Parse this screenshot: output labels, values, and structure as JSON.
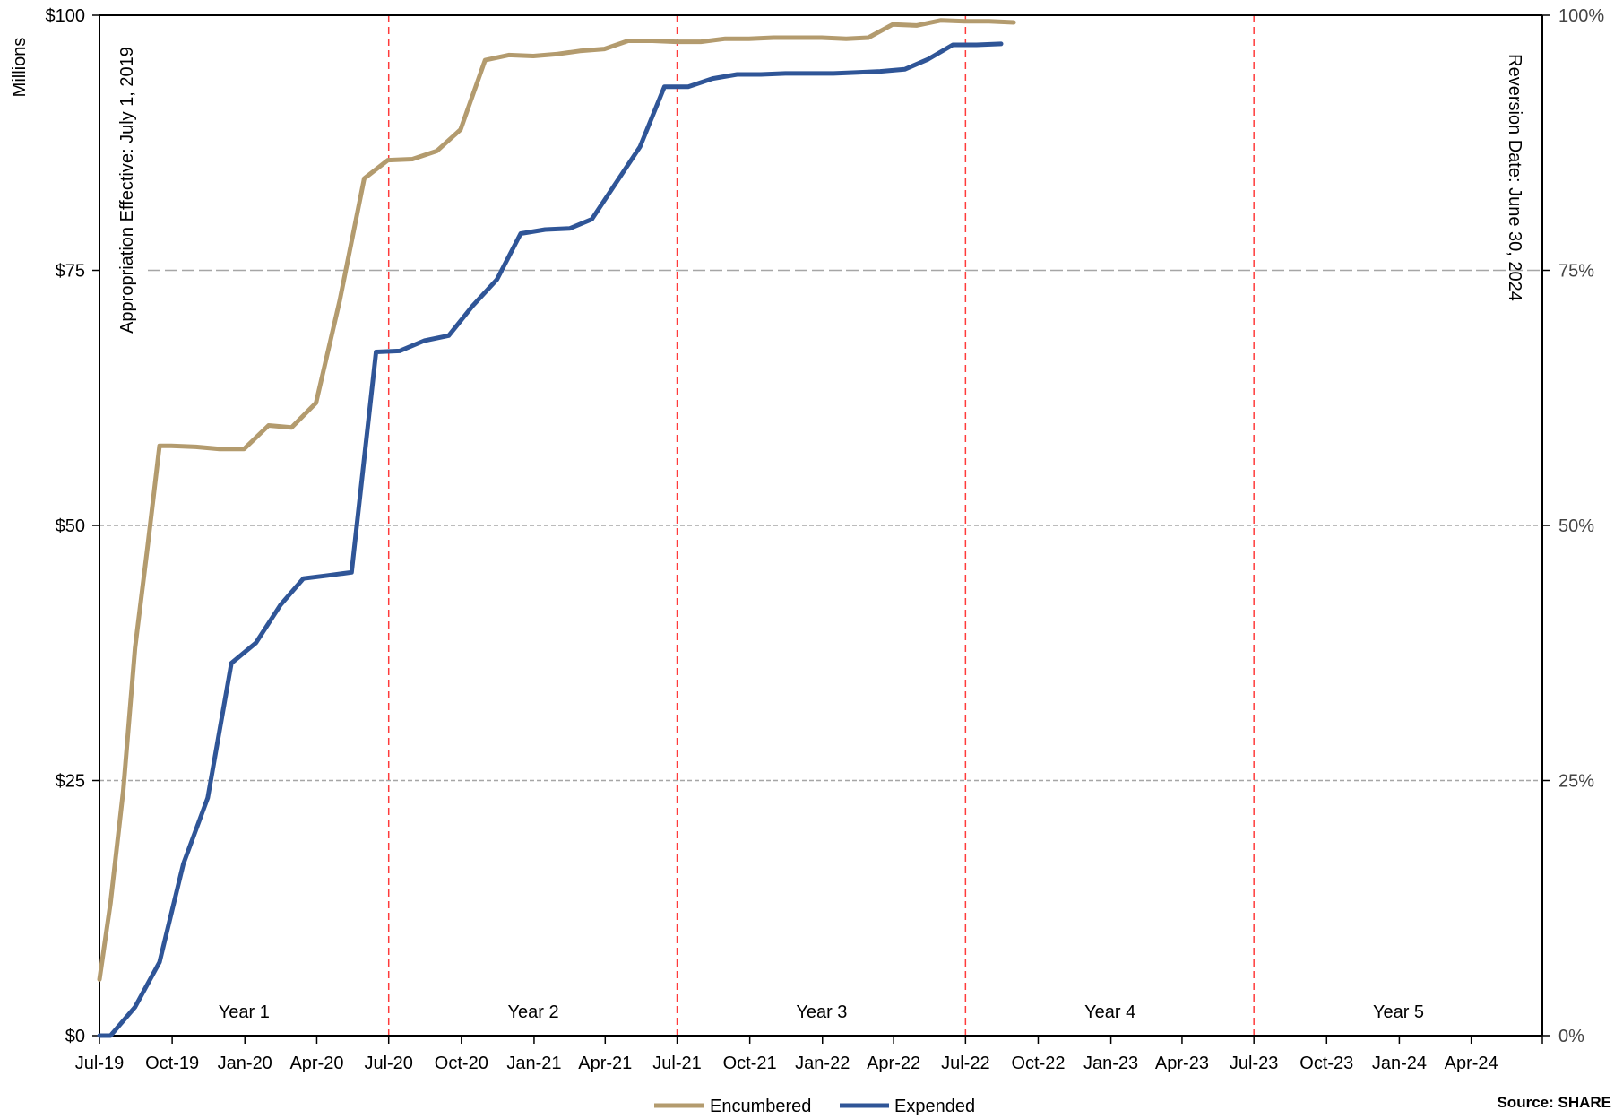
{
  "chart_data": {
    "type": "line",
    "ylabel": "Millions",
    "y_ticks": [
      "$0",
      "$25",
      "$50",
      "$75",
      "$100"
    ],
    "y_right_ticks": [
      "0%",
      "25%",
      "50%",
      "75%",
      "100%"
    ],
    "ylim": [
      0,
      100
    ],
    "x_range": [
      "2019-07-01",
      "2024-06-30"
    ],
    "x_ticks": [
      {
        "label": "Jul-19",
        "date": "2019-07-01"
      },
      {
        "label": "Oct-19",
        "date": "2019-10-01"
      },
      {
        "label": "Jan-20",
        "date": "2020-01-01"
      },
      {
        "label": "Apr-20",
        "date": "2020-04-01"
      },
      {
        "label": "Jul-20",
        "date": "2020-07-01"
      },
      {
        "label": "Oct-20",
        "date": "2020-10-01"
      },
      {
        "label": "Jan-21",
        "date": "2021-01-01"
      },
      {
        "label": "Apr-21",
        "date": "2021-04-01"
      },
      {
        "label": "Jul-21",
        "date": "2021-07-01"
      },
      {
        "label": "Oct-21",
        "date": "2021-10-01"
      },
      {
        "label": "Jan-22",
        "date": "2022-01-01"
      },
      {
        "label": "Apr-22",
        "date": "2022-04-01"
      },
      {
        "label": "Jul-22",
        "date": "2022-07-01"
      },
      {
        "label": "Oct-22",
        "date": "2022-10-01"
      },
      {
        "label": "Jan-23",
        "date": "2023-01-01"
      },
      {
        "label": "Apr-23",
        "date": "2023-04-01"
      },
      {
        "label": "Jul-23",
        "date": "2023-07-01"
      },
      {
        "label": "Oct-23",
        "date": "2023-10-01"
      },
      {
        "label": "Jan-24",
        "date": "2024-01-01"
      },
      {
        "label": "Apr-24",
        "date": "2024-04-01"
      }
    ],
    "year_boundaries": [
      "2020-07-01",
      "2021-07-01",
      "2022-07-01",
      "2023-07-01"
    ],
    "periods": [
      {
        "label": "Year 1",
        "date": "2019-12-31"
      },
      {
        "label": "Year 2",
        "date": "2020-12-31"
      },
      {
        "label": "Year 3",
        "date": "2021-12-31"
      },
      {
        "label": "Year 4",
        "date": "2022-12-31"
      },
      {
        "label": "Year 5",
        "date": "2023-12-31"
      }
    ],
    "annotations": {
      "left": "Appropriation Effective: July 1, 2019",
      "right": "Reversion Date: June 30, 2024"
    },
    "grid": "horizontal dashed",
    "legend_position": "bottom-center",
    "source": "Source: SHARE",
    "series": [
      {
        "name": "Encumbered",
        "color": "#B39B6E",
        "points": [
          [
            "2019-07-01",
            5.5
          ],
          [
            "2019-07-15",
            13
          ],
          [
            "2019-07-31",
            24
          ],
          [
            "2019-08-15",
            38
          ],
          [
            "2019-08-31",
            48
          ],
          [
            "2019-09-15",
            57.8
          ],
          [
            "2019-09-30",
            57.8
          ],
          [
            "2019-10-31",
            57.7
          ],
          [
            "2019-11-30",
            57.5
          ],
          [
            "2019-12-31",
            57.5
          ],
          [
            "2020-01-31",
            59.8
          ],
          [
            "2020-02-29",
            59.6
          ],
          [
            "2020-03-31",
            62
          ],
          [
            "2020-04-30",
            72
          ],
          [
            "2020-05-31",
            84
          ],
          [
            "2020-06-30",
            85.8
          ],
          [
            "2020-07-31",
            85.9
          ],
          [
            "2020-08-31",
            86.7
          ],
          [
            "2020-09-30",
            88.8
          ],
          [
            "2020-10-31",
            95.6
          ],
          [
            "2020-11-30",
            96.1
          ],
          [
            "2020-12-31",
            96.0
          ],
          [
            "2021-01-31",
            96.2
          ],
          [
            "2021-02-28",
            96.5
          ],
          [
            "2021-03-31",
            96.7
          ],
          [
            "2021-04-30",
            97.5
          ],
          [
            "2021-05-31",
            97.5
          ],
          [
            "2021-06-30",
            97.4
          ],
          [
            "2021-07-31",
            97.4
          ],
          [
            "2021-08-31",
            97.7
          ],
          [
            "2021-09-30",
            97.7
          ],
          [
            "2021-10-31",
            97.8
          ],
          [
            "2021-11-30",
            97.8
          ],
          [
            "2021-12-31",
            97.8
          ],
          [
            "2022-01-31",
            97.7
          ],
          [
            "2022-02-28",
            97.8
          ],
          [
            "2022-03-31",
            99.1
          ],
          [
            "2022-04-30",
            99.0
          ],
          [
            "2022-05-31",
            99.5
          ],
          [
            "2022-06-30",
            99.4
          ],
          [
            "2022-07-31",
            99.4
          ],
          [
            "2022-08-31",
            99.3
          ]
        ]
      },
      {
        "name": "Expended",
        "color": "#2F5597",
        "points": [
          [
            "2019-07-01",
            0
          ],
          [
            "2019-07-15",
            0
          ],
          [
            "2019-08-15",
            2.8
          ],
          [
            "2019-09-15",
            7.2
          ],
          [
            "2019-10-15",
            16.8
          ],
          [
            "2019-11-15",
            23.3
          ],
          [
            "2019-12-15",
            36.5
          ],
          [
            "2020-01-15",
            38.5
          ],
          [
            "2020-02-15",
            42.2
          ],
          [
            "2020-03-15",
            44.8
          ],
          [
            "2020-04-15",
            45.1
          ],
          [
            "2020-05-15",
            45.4
          ],
          [
            "2020-06-15",
            67
          ],
          [
            "2020-07-15",
            67.1
          ],
          [
            "2020-08-15",
            68.1
          ],
          [
            "2020-09-15",
            68.6
          ],
          [
            "2020-10-15",
            71.5
          ],
          [
            "2020-11-15",
            74.1
          ],
          [
            "2020-12-15",
            78.6
          ],
          [
            "2021-01-15",
            79.0
          ],
          [
            "2021-02-15",
            79.1
          ],
          [
            "2021-03-15",
            80
          ],
          [
            "2021-04-15",
            83.6
          ],
          [
            "2021-05-15",
            87.1
          ],
          [
            "2021-06-15",
            93.0
          ],
          [
            "2021-07-15",
            93.0
          ],
          [
            "2021-08-15",
            93.8
          ],
          [
            "2021-09-15",
            94.2
          ],
          [
            "2021-10-15",
            94.2
          ],
          [
            "2021-11-15",
            94.3
          ],
          [
            "2021-12-15",
            94.3
          ],
          [
            "2022-01-15",
            94.3
          ],
          [
            "2022-02-15",
            94.4
          ],
          [
            "2022-03-15",
            94.5
          ],
          [
            "2022-04-15",
            94.7
          ],
          [
            "2022-05-15",
            95.7
          ],
          [
            "2022-06-15",
            97.1
          ],
          [
            "2022-07-15",
            97.1
          ],
          [
            "2022-08-15",
            97.2
          ]
        ]
      }
    ]
  }
}
